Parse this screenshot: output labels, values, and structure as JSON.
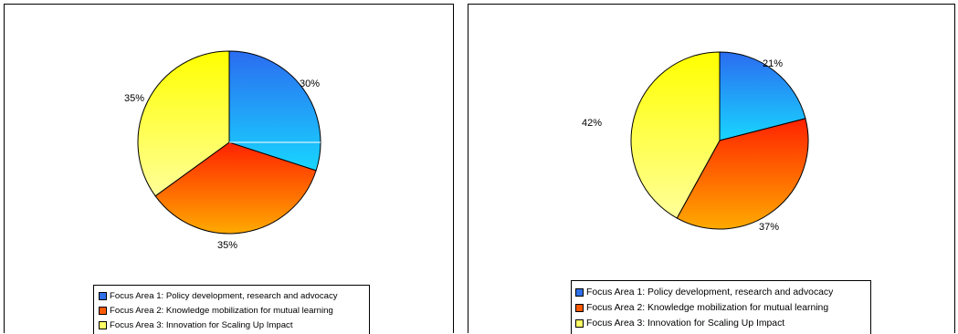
{
  "chart_data": [
    {
      "type": "pie",
      "categories": [
        "Focus Area 1: Policy development, research and advocacy",
        "Focus Area 2: Knowledge mobilization for mutual learning",
        "Focus Area 3: Innovation for Scaling Up Impact"
      ],
      "values": [
        30,
        35,
        35
      ],
      "data_labels": [
        "30%",
        "35%",
        "35%"
      ],
      "legend_position": "bottom",
      "colors": [
        "#1e90ff",
        "#ff6a00",
        "#ffff33"
      ]
    },
    {
      "type": "pie",
      "categories": [
        "Focus Area 1: Policy development, research and advocacy",
        "Focus Area 2: Knowledge mobilization for mutual learning",
        "Focus Area 3: Innovation for Scaling Up Impact"
      ],
      "values": [
        21,
        37,
        42
      ],
      "data_labels": [
        "21%",
        "37%",
        "42%"
      ],
      "legend_position": "bottom",
      "colors": [
        "#1e90ff",
        "#ff6a00",
        "#ffff33"
      ]
    }
  ]
}
